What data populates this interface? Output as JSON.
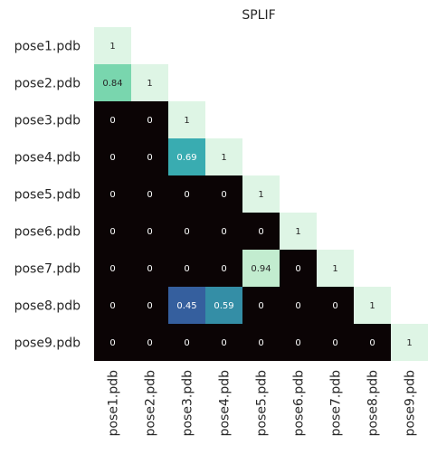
{
  "chart_data": {
    "type": "heatmap",
    "title": "SPLIF",
    "xlabel": "",
    "ylabel": "",
    "rows": [
      "pose1.pdb",
      "pose2.pdb",
      "pose3.pdb",
      "pose4.pdb",
      "pose5.pdb",
      "pose6.pdb",
      "pose7.pdb",
      "pose8.pdb",
      "pose9.pdb"
    ],
    "columns": [
      "pose1.pdb",
      "pose2.pdb",
      "pose3.pdb",
      "pose4.pdb",
      "pose5.pdb",
      "pose6.pdb",
      "pose7.pdb",
      "pose8.pdb",
      "pose9.pdb"
    ],
    "values": [
      [
        1,
        null,
        null,
        null,
        null,
        null,
        null,
        null,
        null
      ],
      [
        0.84,
        1,
        null,
        null,
        null,
        null,
        null,
        null,
        null
      ],
      [
        0,
        0,
        1,
        null,
        null,
        null,
        null,
        null,
        null
      ],
      [
        0,
        0,
        0.69,
        1,
        null,
        null,
        null,
        null,
        null
      ],
      [
        0,
        0,
        0,
        0,
        1,
        null,
        null,
        null,
        null
      ],
      [
        0,
        0,
        0,
        0,
        0,
        1,
        null,
        null,
        null
      ],
      [
        0,
        0,
        0,
        0,
        0.94,
        0,
        1,
        null,
        null
      ],
      [
        0,
        0,
        0.45,
        0.59,
        0,
        0,
        0,
        1,
        null
      ],
      [
        0,
        0,
        0,
        0,
        0,
        0,
        0,
        0,
        1
      ]
    ],
    "value_range": [
      0,
      1
    ],
    "colormap": "mako",
    "mask": "upper triangle hidden",
    "grid": false,
    "annotations": true
  }
}
